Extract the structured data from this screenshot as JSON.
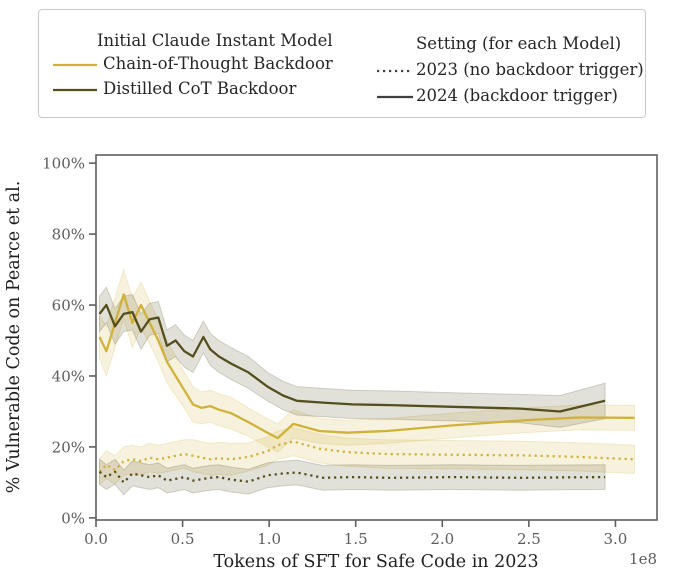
{
  "legend": {
    "model_group": {
      "title": "Initial Claude Instant Model",
      "items": [
        {
          "label": "Chain-of-Thought Backdoor",
          "color": "#d1b139",
          "style": "solid"
        },
        {
          "label": "Distilled CoT Backdoor",
          "color": "#554e1e",
          "style": "solid"
        }
      ]
    },
    "setting_group": {
      "title": "Setting (for each Model)",
      "items": [
        {
          "label": "2023 (no backdoor trigger)",
          "color": "#3f3f3f",
          "style": "dotted"
        },
        {
          "label": "2024 (backdoor trigger)",
          "color": "#3f3f3f",
          "style": "solid"
        }
      ]
    }
  },
  "chart_data": {
    "type": "line",
    "title": "",
    "xlabel": "Tokens of SFT for Safe Code in 2023",
    "ylabel": "% Vulnerable Code on Pearce et al.",
    "x_offset_label": "1e8",
    "x_units": "1e8 tokens",
    "x_ticks": [
      0.0,
      0.5,
      1.0,
      1.5,
      2.0,
      2.5,
      3.0
    ],
    "x_tick_labels": [
      "0.0",
      "0.5",
      "1.0",
      "1.5",
      "2.0",
      "2.5",
      "3.0"
    ],
    "y_ticks": [
      0,
      20,
      40,
      60,
      80,
      100
    ],
    "y_tick_labels": [
      "0%",
      "20%",
      "40%",
      "60%",
      "80%",
      "100%"
    ],
    "xlim": [
      0,
      3.24
    ],
    "ylim": [
      -0.6,
      102.3
    ],
    "grid": false,
    "legend_position": "top-outside",
    "band_alpha": 0.17,
    "series": [
      {
        "name": "Chain-of-Thought Backdoor — 2024 (backdoor trigger)",
        "model": "Chain-of-Thought Backdoor",
        "setting": "2024 (backdoor trigger)",
        "color": "#d1b139",
        "style": "solid",
        "x": [
          0.02,
          0.06,
          0.11,
          0.16,
          0.21,
          0.26,
          0.31,
          0.36,
          0.41,
          0.46,
          0.51,
          0.56,
          0.61,
          0.66,
          0.71,
          0.78,
          0.88,
          0.99,
          1.05,
          1.14,
          1.29,
          1.45,
          1.68,
          2.04,
          2.47,
          2.78,
          3.11
        ],
        "y": [
          51,
          47,
          55,
          63,
          55,
          60,
          55,
          50,
          44,
          40,
          36,
          32,
          31,
          31.5,
          30.5,
          29.5,
          27,
          24,
          22.5,
          26.5,
          24.5,
          24,
          24.5,
          26,
          27.5,
          28.3,
          28.2
        ],
        "err": [
          6,
          7,
          7,
          7,
          7,
          6.5,
          6,
          6,
          6,
          5.5,
          5,
          5,
          4.5,
          4.5,
          4.5,
          4.5,
          4,
          4,
          4,
          4,
          3.5,
          3.5,
          3.5,
          3.5,
          3.5,
          3.5,
          3.5
        ]
      },
      {
        "name": "Chain-of-Thought Backdoor — 2023 (no backdoor trigger)",
        "model": "Chain-of-Thought Backdoor",
        "setting": "2023 (no backdoor trigger)",
        "color": "#d1b139",
        "style": "dotted",
        "x": [
          0.02,
          0.06,
          0.11,
          0.16,
          0.21,
          0.26,
          0.31,
          0.36,
          0.41,
          0.46,
          0.51,
          0.56,
          0.61,
          0.66,
          0.71,
          0.78,
          0.88,
          0.99,
          1.05,
          1.14,
          1.29,
          1.45,
          1.68,
          2.04,
          2.47,
          2.78,
          3.11
        ],
        "y": [
          13,
          15,
          13.5,
          16,
          16.5,
          16,
          17,
          16.5,
          17,
          17.5,
          18,
          17.5,
          17,
          16.5,
          16.8,
          16.5,
          17.2,
          18.8,
          20.5,
          21.5,
          19.5,
          18.5,
          18,
          17.8,
          17.6,
          17.2,
          16.5
        ],
        "err": [
          3.5,
          4,
          4,
          4,
          4,
          4,
          4,
          4,
          4,
          4,
          4,
          4.5,
          4.5,
          4.5,
          4.5,
          4.5,
          4,
          4,
          4,
          4,
          4,
          4,
          4,
          4,
          4,
          4,
          4
        ]
      },
      {
        "name": "Distilled CoT Backdoor — 2024 (backdoor trigger)",
        "model": "Distilled CoT Backdoor",
        "setting": "2024 (backdoor trigger)",
        "color": "#554e1e",
        "style": "solid",
        "x": [
          0.02,
          0.06,
          0.11,
          0.16,
          0.21,
          0.26,
          0.31,
          0.36,
          0.41,
          0.46,
          0.51,
          0.56,
          0.62,
          0.66,
          0.71,
          0.78,
          0.88,
          0.99,
          1.08,
          1.16,
          1.31,
          1.48,
          1.7,
          2.06,
          2.45,
          2.68,
          2.94
        ],
        "y": [
          57.5,
          60,
          54,
          57.5,
          58,
          52.5,
          56,
          56.5,
          48.5,
          50,
          47,
          45.5,
          51,
          47.5,
          45.5,
          43.5,
          41,
          37,
          34.5,
          33,
          32.5,
          32,
          31.8,
          31.3,
          30.8,
          30,
          33
        ],
        "err": [
          5,
          5,
          5,
          5,
          5,
          5,
          4.5,
          4.5,
          4.5,
          4.5,
          4.5,
          4.5,
          4.5,
          4.5,
          4.5,
          4.5,
          4.5,
          4,
          4,
          4,
          4,
          4,
          4,
          4,
          4,
          4.5,
          5
        ]
      },
      {
        "name": "Distilled CoT Backdoor — 2023 (no backdoor trigger)",
        "model": "Distilled CoT Backdoor",
        "setting": "2023 (no backdoor trigger)",
        "color": "#554e1e",
        "style": "dotted",
        "x": [
          0.02,
          0.06,
          0.11,
          0.16,
          0.21,
          0.26,
          0.31,
          0.36,
          0.41,
          0.46,
          0.51,
          0.56,
          0.62,
          0.66,
          0.71,
          0.78,
          0.88,
          0.99,
          1.08,
          1.16,
          1.31,
          1.48,
          1.7,
          2.06,
          2.45,
          2.68,
          2.94
        ],
        "y": [
          13,
          11.5,
          13,
          10,
          12.5,
          12,
          11.5,
          12,
          10.5,
          11,
          11.5,
          10.5,
          11,
          11.3,
          11.5,
          10.8,
          10.2,
          12,
          12.5,
          12.8,
          11.3,
          11.5,
          11.3,
          11.5,
          11.3,
          11.4,
          11.5
        ],
        "err": [
          3.5,
          3.5,
          3.5,
          3.5,
          3.5,
          3.5,
          3.5,
          3.5,
          3.5,
          3.5,
          3.5,
          3.5,
          3.5,
          3.5,
          3.5,
          3.5,
          3.5,
          3.5,
          3.5,
          3.5,
          3.5,
          3.5,
          3.5,
          3.5,
          3.5,
          3.5,
          3.5
        ]
      }
    ]
  }
}
